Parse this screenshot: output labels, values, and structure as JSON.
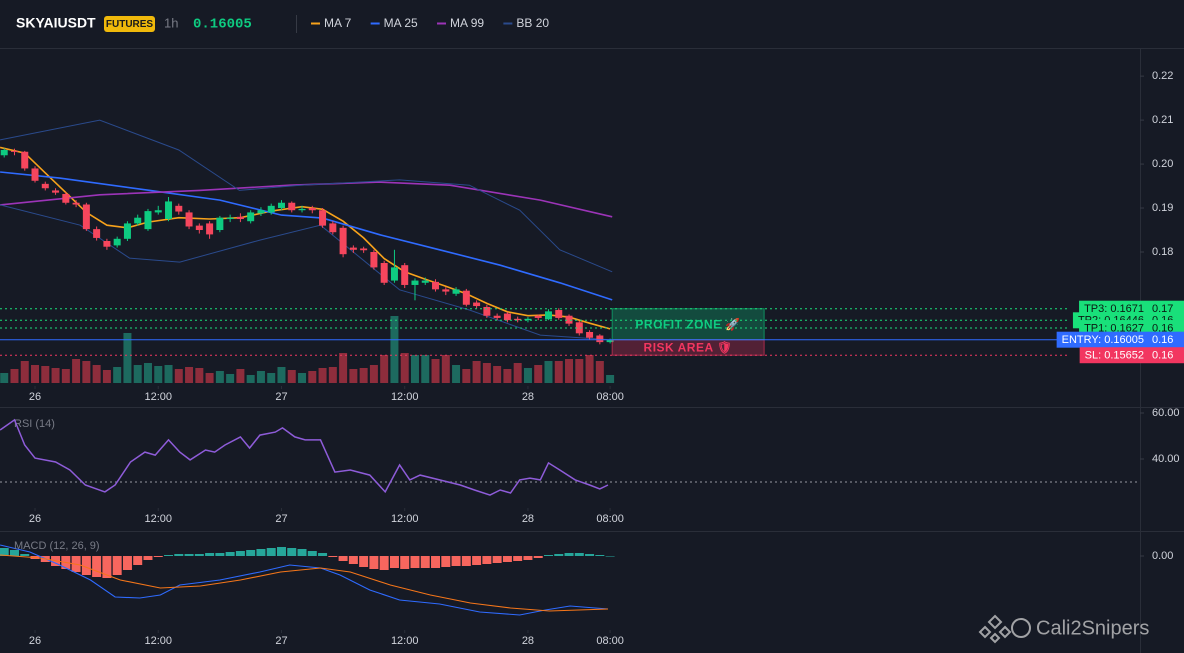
{
  "header": {
    "symbol": "SKYAIUSDT",
    "badge": "FUTURES",
    "interval": "1h",
    "price": 0.16005
  },
  "watermark": "Cali2Snipers",
  "chart_data": [
    {
      "type": "candlestick",
      "x": [
        -3,
        -2,
        -1,
        0,
        1,
        2,
        3,
        4,
        5,
        6,
        7,
        8,
        9,
        10,
        11,
        12,
        13,
        14,
        15,
        16,
        17,
        18,
        19,
        20,
        21,
        22,
        23,
        24,
        25,
        26,
        27,
        28,
        29,
        30,
        31,
        32,
        33,
        34,
        35,
        36,
        37,
        38,
        39,
        40,
        41,
        42,
        43,
        44,
        45,
        46,
        47,
        48,
        49,
        50,
        51,
        52,
        53,
        54,
        55,
        56
      ],
      "open": [
        0.202,
        0.203,
        0.2028,
        0.199,
        0.1955,
        0.194,
        0.1932,
        0.1912,
        0.1908,
        0.1852,
        0.1825,
        0.1815,
        0.183,
        0.1865,
        0.1852,
        0.189,
        0.1875,
        0.1905,
        0.189,
        0.186,
        0.1865,
        0.185,
        0.1875,
        0.188,
        0.187,
        0.1888,
        0.189,
        0.19,
        0.1912,
        0.1895,
        0.19,
        0.1895,
        0.1865,
        0.1855,
        0.181,
        0.1808,
        0.18,
        0.1775,
        0.1735,
        0.177,
        0.1725,
        0.173,
        0.1732,
        0.1715,
        0.1705,
        0.1712,
        0.1685,
        0.1675,
        0.1655,
        0.166,
        0.1648,
        0.1645,
        0.1655,
        0.1647,
        0.1668,
        0.1655,
        0.164,
        0.1618,
        0.161,
        0.1595
      ],
      "high": [
        0.2036,
        0.2035,
        0.203,
        0.1995,
        0.196,
        0.1945,
        0.1936,
        0.1918,
        0.1912,
        0.1858,
        0.183,
        0.1835,
        0.187,
        0.1885,
        0.1898,
        0.1905,
        0.1925,
        0.191,
        0.1895,
        0.1865,
        0.187,
        0.1882,
        0.1885,
        0.1888,
        0.1895,
        0.1902,
        0.191,
        0.1918,
        0.1915,
        0.1905,
        0.1905,
        0.19,
        0.187,
        0.186,
        0.1815,
        0.1812,
        0.1805,
        0.178,
        0.1805,
        0.1775,
        0.174,
        0.1742,
        0.1738,
        0.172,
        0.172,
        0.1716,
        0.169,
        0.168,
        0.166,
        0.1664,
        0.1653,
        0.1652,
        0.1658,
        0.167,
        0.1672,
        0.1658,
        0.1643,
        0.1622,
        0.1613,
        0.1603
      ],
      "low": [
        0.2015,
        0.202,
        0.1985,
        0.1958,
        0.194,
        0.193,
        0.1908,
        0.1902,
        0.1848,
        0.1826,
        0.1805,
        0.181,
        0.1825,
        0.186,
        0.1848,
        0.1885,
        0.187,
        0.1885,
        0.1852,
        0.1842,
        0.183,
        0.1845,
        0.1868,
        0.1868,
        0.1865,
        0.1882,
        0.1885,
        0.1895,
        0.189,
        0.189,
        0.1888,
        0.1855,
        0.184,
        0.1788,
        0.1798,
        0.1798,
        0.176,
        0.1725,
        0.173,
        0.1718,
        0.169,
        0.1725,
        0.171,
        0.1702,
        0.17,
        0.1676,
        0.1672,
        0.165,
        0.1645,
        0.164,
        0.164,
        0.164,
        0.1645,
        0.1645,
        0.1646,
        0.1632,
        0.161,
        0.16,
        0.159,
        0.1592
      ],
      "close": [
        0.2032,
        0.2028,
        0.199,
        0.1962,
        0.1945,
        0.1935,
        0.1912,
        0.1908,
        0.1852,
        0.1832,
        0.1812,
        0.183,
        0.1865,
        0.1878,
        0.1893,
        0.1895,
        0.1915,
        0.1892,
        0.1858,
        0.185,
        0.184,
        0.1878,
        0.1878,
        0.1875,
        0.189,
        0.1895,
        0.1905,
        0.1912,
        0.1895,
        0.1898,
        0.1895,
        0.186,
        0.1845,
        0.1795,
        0.1805,
        0.1804,
        0.1765,
        0.173,
        0.1765,
        0.1725,
        0.1735,
        0.1735,
        0.1715,
        0.171,
        0.1715,
        0.168,
        0.1677,
        0.1655,
        0.165,
        0.1645,
        0.1645,
        0.1648,
        0.165,
        0.1665,
        0.165,
        0.1637,
        0.1615,
        0.1605,
        0.1595,
        0.16005
      ],
      "volume": [
        10,
        14,
        22,
        18,
        17,
        15,
        14,
        24,
        22,
        18,
        13,
        16,
        50,
        18,
        20,
        17,
        18,
        14,
        16,
        15,
        10,
        12,
        9,
        14,
        8,
        12,
        10,
        16,
        13,
        10,
        12,
        15,
        16,
        30,
        14,
        15,
        18,
        28,
        67,
        30,
        28,
        28,
        24,
        28,
        18,
        14,
        22,
        20,
        17,
        14,
        20,
        15,
        18,
        22,
        22,
        24,
        24,
        28,
        22,
        8
      ],
      "vlim": [
        0,
        70
      ],
      "up_color": "#0ecb81",
      "down_color": "#f6465d",
      "volume_up_color": "#1d6a5f",
      "volume_down_color": "#8e2d3c",
      "xlim": [
        -3.41,
        107.6
      ],
      "ylim": [
        0.1502,
        0.2264
      ],
      "xticks": [
        {
          "value": 0,
          "label": "26"
        },
        {
          "value": 12,
          "label": "12:00"
        },
        {
          "value": 24,
          "label": "27"
        },
        {
          "value": 36,
          "label": "12:00"
        },
        {
          "value": 48,
          "label": "28"
        },
        {
          "value": 56,
          "label": "08:00"
        }
      ],
      "yticks": [
        0.18,
        0.19,
        {
          "value": 0.2,
          "label": "0.20"
        },
        0.21,
        0.22
      ],
      "series": [
        {
          "name": "MA 7",
          "color": "#f7a21b",
          "x": [
            -3.4,
            -1,
            1,
            3,
            5,
            7,
            9,
            11,
            14,
            17,
            20,
            23,
            26,
            28,
            30,
            32,
            34,
            36,
            38,
            40,
            42,
            44,
            46,
            48,
            50,
            52,
            54,
            56
          ],
          "values": [
            0.2038,
            0.2025,
            0.198,
            0.1935,
            0.189,
            0.1861,
            0.1855,
            0.1868,
            0.1878,
            0.1875,
            0.1878,
            0.1893,
            0.1903,
            0.1897,
            0.187,
            0.1832,
            0.1785,
            0.1755,
            0.1738,
            0.1722,
            0.1705,
            0.1683,
            0.1664,
            0.1655,
            0.1657,
            0.1652,
            0.1638,
            0.1625
          ]
        },
        {
          "name": "MA 25",
          "color": "#2f6bff",
          "x": [
            -3.4,
            2.4,
            11.2,
            18,
            24,
            28,
            33.6,
            39.4,
            45.3,
            51.1,
            56.2
          ],
          "values": [
            0.1982,
            0.1968,
            0.194,
            0.1918,
            0.1884,
            0.1877,
            0.1839,
            0.1805,
            0.177,
            0.173,
            0.1691
          ]
        },
        {
          "name": "MA 99",
          "color": "#9c34b8",
          "x": [
            -3.4,
            6.3,
            16,
            24.8,
            33.6,
            40.4,
            49.2,
            56.2
          ],
          "values": [
            0.1907,
            0.193,
            0.194,
            0.1952,
            0.1959,
            0.1952,
            0.1918,
            0.188
          ]
        },
        {
          "name": "BB 20",
          "color": "#2a4a8c",
          "x": [
            -3.4,
            6.3,
            14,
            19.9,
            25.8,
            35.5,
            42.3,
            47.2,
            51.1,
            56.2
          ],
          "values": [
            0.2055,
            0.21,
            0.2032,
            0.194,
            0.1952,
            0.1964,
            0.1952,
            0.1895,
            0.1805,
            0.1755
          ],
          "lower_x": [
            -3.4,
            4.4,
            9.2,
            14.1,
            21.9,
            27.8,
            35.5,
            42.3,
            49.2,
            56.2
          ],
          "lower": [
            0.1907,
            0.1861,
            0.1786,
            0.1777,
            0.1827,
            0.1861,
            0.1714,
            0.1668,
            0.1611,
            0.16
          ]
        }
      ],
      "levels": [
        {
          "label": "TP3: 0.1671",
          "value": 0.1671,
          "value_label": "0.17",
          "color": "#19e07a",
          "text_color": "#0b1a12",
          "line": "dotted"
        },
        {
          "label": "TP2: 0.16446",
          "value": 0.16446,
          "value_label": "0.16",
          "color": "#19e07a",
          "text_color": "#0b1a12",
          "line": "dotted"
        },
        {
          "label": "TP1: 0.1627",
          "value": 0.1627,
          "value_label": "0.16",
          "color": "#19e07a",
          "text_color": "#0b1a12",
          "line": "dotted"
        },
        {
          "label": "ENTRY: 0.16005",
          "value": 0.16005,
          "value_label": "0.16",
          "color": "#2f6bff",
          "text_color": "#ffffff",
          "line": "solid"
        },
        {
          "label": "SL: 0.15652",
          "value": 0.15652,
          "value_label": "0.16",
          "color": "#f23660",
          "text_color": "#ffffff",
          "line": "dotted"
        }
      ],
      "zones": [
        {
          "label": "PROFIT ZONE 🚀",
          "from": 0.16005,
          "to": 0.1671,
          "x": [
            56.2,
            71
          ],
          "color": "#0ecb81"
        },
        {
          "label": "RISK AREA 🛡",
          "from": 0.16005,
          "to": 0.15652,
          "x": [
            56.2,
            71
          ],
          "color": "#f23660"
        }
      ]
    },
    {
      "type": "line",
      "title": "RSI (14)",
      "color": "#8e5cd9",
      "x": [
        -3.4,
        -2,
        -1,
        0,
        2,
        3.4,
        4.9,
        6.8,
        7.8,
        9.3,
        10.7,
        11.7,
        13,
        14.1,
        15.1,
        16.6,
        17.5,
        18.5,
        20,
        20.9,
        21.9,
        23.4,
        24.1,
        25.3,
        26.3,
        27.8,
        29.2,
        30.7,
        32.6,
        34.1,
        35.5,
        36.5,
        37.5,
        39.4,
        41.4,
        42.8,
        44.3,
        45.3,
        46.3,
        47.2,
        48.2,
        49.2,
        50,
        51.1,
        52.6,
        54,
        55,
        55.8
      ],
      "values": [
        52.6,
        57,
        46.1,
        40.4,
        38.7,
        35.2,
        28.7,
        25.7,
        28.7,
        38.7,
        43,
        41.7,
        48.3,
        43,
        39.6,
        43.9,
        43,
        46.1,
        49.6,
        44.8,
        50.4,
        51.7,
        53.5,
        49.6,
        48.3,
        48.3,
        34.3,
        35.2,
        33,
        25.7,
        37.4,
        30.9,
        33,
        30.9,
        28.7,
        26.5,
        24.3,
        26.5,
        25.2,
        30.9,
        31.7,
        30.9,
        38.3,
        35.2,
        30.9,
        28.7,
        27,
        28.7
      ],
      "hlines": [
        30
      ],
      "xlim": [
        -3.41,
        107.6
      ],
      "ylim": [
        20,
        61.3
      ],
      "xticks": [
        {
          "value": 0,
          "label": "26"
        },
        {
          "value": 12,
          "label": "12:00"
        },
        {
          "value": 24,
          "label": "27"
        },
        {
          "value": 36,
          "label": "12:00"
        },
        {
          "value": 48,
          "label": "28"
        },
        {
          "value": 56,
          "label": "08:00"
        }
      ],
      "yticks": [
        {
          "value": 60,
          "label": "60.00"
        },
        {
          "value": 40,
          "label": "40.00"
        }
      ]
    },
    {
      "type": "macd",
      "title": "MACD (12, 26, 9)",
      "x": [
        -3,
        -2,
        -1,
        0,
        1,
        2,
        3,
        4,
        5,
        6,
        7,
        8,
        9,
        10,
        11,
        12,
        13,
        14,
        15,
        16,
        17,
        18,
        19,
        20,
        21,
        22,
        23,
        24,
        25,
        26,
        27,
        28,
        29,
        30,
        31,
        32,
        33,
        34,
        35,
        36,
        37,
        38,
        39,
        40,
        41,
        42,
        43,
        44,
        45,
        46,
        47,
        48,
        49,
        50,
        51,
        52,
        53,
        54,
        55,
        56
      ],
      "histogram": [
        0.0008,
        0.0006,
        0.0002,
        -0.0003,
        -0.0006,
        -0.001,
        -0.0013,
        -0.0016,
        -0.0019,
        -0.0021,
        -0.0022,
        -0.0019,
        -0.0014,
        -0.0009,
        -0.0004,
        -0.0001,
        0.0001,
        0.0002,
        0.0002,
        0.0002,
        0.0003,
        0.0003,
        0.0004,
        0.0005,
        0.0006,
        0.0007,
        0.0008,
        0.0009,
        0.0008,
        0.0007,
        0.0005,
        0.0003,
        -0.0001,
        -0.0005,
        -0.0008,
        -0.0011,
        -0.0013,
        -0.0014,
        -0.0012,
        -0.0013,
        -0.0012,
        -0.0012,
        -0.0012,
        -0.0011,
        -0.001,
        -0.001,
        -0.0009,
        -0.0008,
        -0.0007,
        -0.0006,
        -0.0005,
        -0.0004,
        -0.0002,
        0.0001,
        0.0002,
        0.0003,
        0.0003,
        0.0002,
        0.0001,
        0
      ],
      "up_color": "#26a69a",
      "down_color": "#f7665e",
      "series": [
        {
          "color": "#2f6bff",
          "x": [
            -3.4,
            -0.5,
            2.4,
            5.4,
            7.8,
            10.2,
            12.2,
            14.1,
            18,
            21.9,
            24.8,
            27.8,
            29.7,
            32.6,
            35.5,
            39.4,
            43.3,
            47.2,
            49.7,
            52.1,
            55.8
          ],
          "values": [
            0.0011,
            0.0004,
            -0.0009,
            -0.0024,
            -0.0041,
            -0.0042,
            -0.0039,
            -0.0029,
            -0.0024,
            -0.0016,
            -0.0009,
            -0.0012,
            -0.0019,
            -0.0034,
            -0.0044,
            -0.0048,
            -0.0056,
            -0.0059,
            -0.0054,
            -0.005,
            -0.0053
          ]
        },
        {
          "color": "#f5761a",
          "x": [
            -3.4,
            0.5,
            4.4,
            8.3,
            12.2,
            16.1,
            20,
            23.9,
            27.8,
            30.7,
            34.6,
            38.5,
            42.4,
            46.3,
            50.1,
            55.8
          ],
          "values": [
            0.0001,
            -0.0002,
            -0.0009,
            -0.0024,
            -0.0032,
            -0.003,
            -0.0024,
            -0.0016,
            -0.0012,
            -0.0016,
            -0.0029,
            -0.0039,
            -0.0047,
            -0.0052,
            -0.0055,
            -0.0053
          ]
        }
      ],
      "xlim": [
        -3.41,
        107.6
      ],
      "ylim": [
        -0.0089,
        0.0021
      ],
      "xticks": [
        {
          "value": 0,
          "label": "26"
        },
        {
          "value": 12,
          "label": "12:00"
        },
        {
          "value": 24,
          "label": "27"
        },
        {
          "value": 36,
          "label": "12:00"
        },
        {
          "value": 48,
          "label": "28"
        },
        {
          "value": 56,
          "label": "08:00"
        }
      ],
      "yticks": [
        {
          "value": 0,
          "label": "0.00"
        }
      ]
    }
  ]
}
